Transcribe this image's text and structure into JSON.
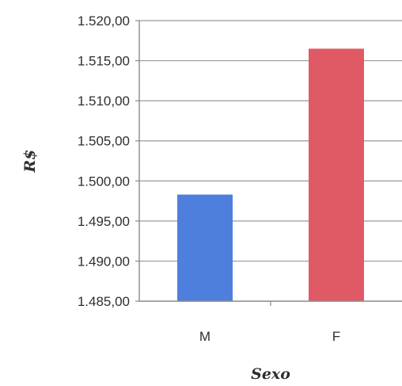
{
  "chart_data": {
    "type": "bar",
    "categories": [
      "M",
      "F"
    ],
    "values": [
      1498.3,
      1516.5
    ],
    "colors": [
      "#4f7fdc",
      "#e05a66"
    ],
    "xlabel": "Sexo",
    "ylabel": "R$",
    "ylim": [
      1485,
      1520
    ],
    "yticks": [
      1485,
      1490,
      1495,
      1500,
      1505,
      1510,
      1515,
      1520
    ],
    "ytick_labels": [
      "1.485,00",
      "1.490,00",
      "1.495,00",
      "1.500,00",
      "1.505,00",
      "1.510,00",
      "1.515,00",
      "1.520,00"
    ],
    "grid": true,
    "legend": "none"
  }
}
